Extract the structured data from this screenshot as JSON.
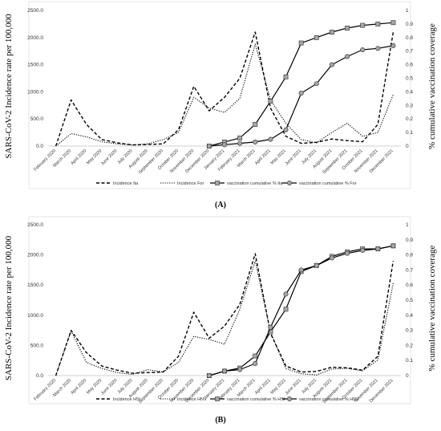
{
  "chart_data": [
    {
      "type": "line",
      "caption": "(A)",
      "ylabel": "SARS-CoV-2 Incidence rate per 100,000",
      "y2label": "% cumulative vaccination coverage",
      "ylim": [
        0,
        2500
      ],
      "y2lim": [
        0,
        1
      ],
      "yticks": [
        "0.0",
        "500.0",
        "1000.0",
        "1500.0",
        "2000.0",
        "2500.0"
      ],
      "y2ticks": [
        "0",
        "0.1",
        "0.2",
        "0.3",
        "0.4",
        "0.5",
        "0.6",
        "0.7",
        "0.8",
        "0.9",
        "1"
      ],
      "categories": [
        "February 2020",
        "March 2020",
        "April 2020",
        "May 2020",
        "June 2020",
        "July 2020",
        "August 2020",
        "September 2020",
        "October 2020",
        "November 2020",
        "December 2020",
        "January 2021",
        "February 2021",
        "March 2021",
        "April 2021",
        "May 2021",
        "June 2021",
        "July 2021",
        "August 2021",
        "September 2021",
        "October 2021",
        "November 2021",
        "December 2021"
      ],
      "series": [
        {
          "name": "Incidence Ita",
          "axis": "left",
          "style": "dashed",
          "values": [
            0,
            850,
            400,
            120,
            60,
            20,
            30,
            40,
            300,
            1100,
            650,
            900,
            1250,
            2100,
            700,
            180,
            50,
            70,
            130,
            100,
            80,
            400,
            2100
          ]
        },
        {
          "name": "Incidence For",
          "axis": "left",
          "style": "dotted",
          "values": [
            0,
            230,
            170,
            80,
            40,
            20,
            40,
            120,
            250,
            900,
            700,
            620,
            880,
            1880,
            850,
            420,
            120,
            60,
            250,
            420,
            180,
            250,
            950
          ]
        },
        {
          "name": "vaccination cumulative % Ita",
          "axis": "right",
          "style": "square",
          "values": [
            null,
            null,
            null,
            null,
            null,
            null,
            null,
            null,
            null,
            null,
            0.0,
            0.03,
            0.06,
            0.16,
            0.33,
            0.51,
            0.76,
            0.8,
            0.84,
            0.87,
            0.89,
            0.9,
            0.91
          ]
        },
        {
          "name": "vaccination cumulative % For",
          "axis": "right",
          "style": "circle",
          "values": [
            null,
            null,
            null,
            null,
            null,
            null,
            null,
            null,
            null,
            null,
            0.0,
            0.01,
            0.02,
            0.03,
            0.05,
            0.12,
            0.39,
            0.46,
            0.6,
            0.66,
            0.71,
            0.72,
            0.74
          ]
        }
      ]
    },
    {
      "type": "line",
      "caption": "(B)",
      "ylabel": "SARS-CoV-2 Incidence rate per 100,000",
      "y2label": "% cumulative vaccination coverage",
      "ylim": [
        0,
        2500
      ],
      "y2lim": [
        0,
        1
      ],
      "yticks": [
        "0.0",
        "500.0",
        "1000.0",
        "1500.0",
        "2000.0",
        "2500.0"
      ],
      "y2ticks": [
        "0",
        "0.1",
        "0.2",
        "0.3",
        "0.4",
        "0.5",
        "0.6",
        "0.7",
        "0.8",
        "0.9",
        "1"
      ],
      "categories": [
        "February 2020",
        "March 2020",
        "April 2020",
        "May 2020",
        "June 2020",
        "July 2020",
        "August 2020",
        "September 2020",
        "October 2020",
        "November 2020",
        "December 2020",
        "January 2021",
        "February 2021",
        "March 2021",
        "April 2021",
        "May 2021",
        "June 2021",
        "July 2021",
        "August 2021",
        "September 2021",
        "October 2021",
        "November 2021",
        "December 2021"
      ],
      "series": [
        {
          "name": "Incidence HSt",
          "axis": "left",
          "style": "dashed",
          "values": [
            0,
            750,
            380,
            160,
            90,
            40,
            50,
            60,
            320,
            1050,
            620,
            820,
            1180,
            2020,
            700,
            160,
            60,
            70,
            140,
            130,
            90,
            320,
            1900
          ]
        },
        {
          "name": "Incidence HNV",
          "axis": "left",
          "style": "dotted",
          "values": [
            0,
            740,
            220,
            120,
            50,
            20,
            100,
            60,
            220,
            650,
            600,
            520,
            1100,
            1900,
            720,
            120,
            30,
            10,
            110,
            120,
            80,
            260,
            1530
          ]
        },
        {
          "name": "vaccination cumulative % HSt",
          "axis": "right",
          "style": "square",
          "values": [
            null,
            null,
            null,
            null,
            null,
            null,
            null,
            null,
            null,
            null,
            0.0,
            0.03,
            0.05,
            0.13,
            0.29,
            0.44,
            0.69,
            0.73,
            0.79,
            0.82,
            0.84,
            0.84,
            0.86
          ]
        },
        {
          "name": "vaccination cumulative % HNV",
          "axis": "right",
          "style": "circle",
          "values": [
            null,
            null,
            null,
            null,
            null,
            null,
            null,
            null,
            null,
            null,
            0.0,
            0.03,
            0.04,
            0.08,
            0.32,
            0.54,
            0.7,
            0.73,
            0.78,
            0.81,
            0.83,
            0.84,
            0.86
          ]
        }
      ]
    }
  ]
}
